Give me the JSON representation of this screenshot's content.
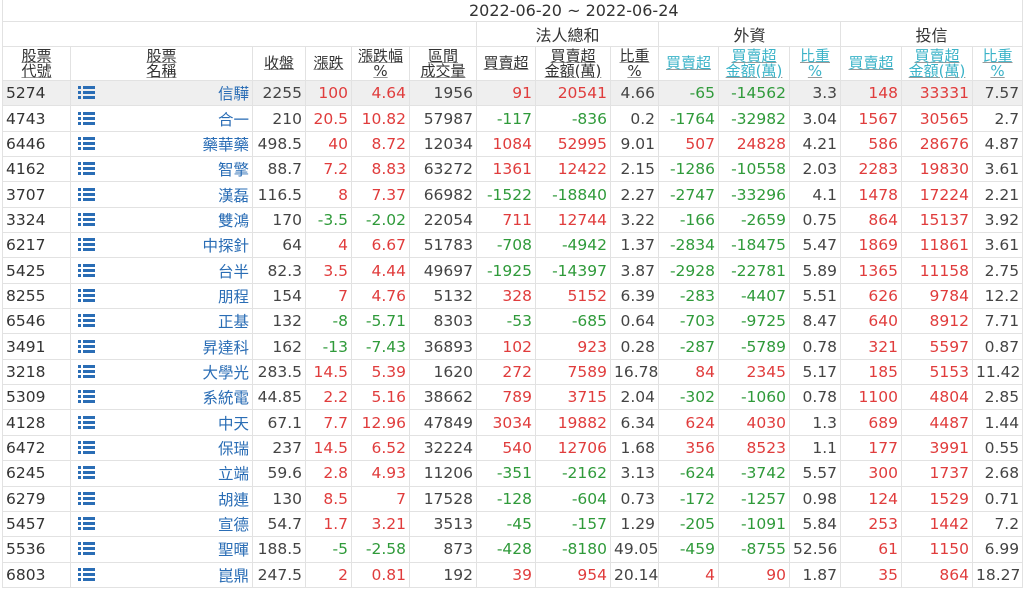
{
  "header": {
    "title": "2022-06-20 ~ 2022-06-24"
  },
  "table": {
    "groups": [
      "法人總和",
      "外資",
      "投信"
    ],
    "columns": [
      [
        "股票",
        "代號"
      ],
      [
        "股票",
        "名稱"
      ],
      [
        "收盤"
      ],
      [
        "漲跌"
      ],
      [
        "漲跌幅",
        "%"
      ],
      [
        "區間",
        "成交量"
      ],
      [
        "買賣超"
      ],
      [
        "買賣超",
        "金額(萬)"
      ],
      [
        "比重",
        "%"
      ],
      [
        "買賣超"
      ],
      [
        "買賣超",
        "金額(萬)"
      ],
      [
        "比重",
        "%"
      ],
      [
        "買賣超"
      ],
      [
        "買賣超",
        "金額(萬)"
      ],
      [
        "比重",
        "%"
      ]
    ],
    "rows": [
      [
        "5274",
        "信驊",
        2255,
        100,
        4.64,
        1956,
        91,
        20541,
        4.66,
        -65,
        -14562,
        3.3,
        148,
        33331,
        7.57
      ],
      [
        "4743",
        "合一",
        210,
        20.5,
        10.82,
        57987,
        -117,
        -836,
        0.2,
        -1764,
        -32982,
        3.04,
        1567,
        30565,
        2.7
      ],
      [
        "6446",
        "藥華藥",
        498.5,
        40,
        8.72,
        12034,
        1084,
        52995,
        9.01,
        507,
        24828,
        4.21,
        586,
        28676,
        4.87
      ],
      [
        "4162",
        "智擎",
        88.7,
        7.2,
        8.83,
        63272,
        1361,
        12422,
        2.15,
        -1286,
        -10558,
        2.03,
        2283,
        19830,
        3.61
      ],
      [
        "3707",
        "漢磊",
        116.5,
        8,
        7.37,
        66982,
        -1522,
        -18840,
        2.27,
        -2747,
        -33296,
        4.1,
        1478,
        17224,
        2.21
      ],
      [
        "3324",
        "雙鴻",
        170,
        -3.5,
        -2.02,
        22054,
        711,
        12744,
        3.22,
        -166,
        -2659,
        0.75,
        864,
        15137,
        3.92
      ],
      [
        "6217",
        "中探針",
        64,
        4,
        6.67,
        51783,
        -708,
        -4942,
        1.37,
        -2834,
        -18475,
        5.47,
        1869,
        11861,
        3.61
      ],
      [
        "5425",
        "台半",
        82.3,
        3.5,
        4.44,
        49697,
        -1925,
        -14397,
        3.87,
        -2928,
        -22781,
        5.89,
        1365,
        11158,
        2.75
      ],
      [
        "8255",
        "朋程",
        154,
        7,
        4.76,
        5132,
        328,
        5152,
        6.39,
        -283,
        -4407,
        5.51,
        626,
        9784,
        12.2
      ],
      [
        "6546",
        "正基",
        132,
        -8,
        -5.71,
        8303,
        -53,
        -685,
        0.64,
        -703,
        -9725,
        8.47,
        640,
        8912,
        7.71
      ],
      [
        "3491",
        "昇達科",
        162,
        -13,
        -7.43,
        36893,
        102,
        923,
        0.28,
        -287,
        -5789,
        0.78,
        321,
        5597,
        0.87
      ],
      [
        "3218",
        "大學光",
        283.5,
        14.5,
        5.39,
        1620,
        272,
        7589,
        16.78,
        84,
        2345,
        5.17,
        185,
        5153,
        11.42
      ],
      [
        "5309",
        "系統電",
        44.85,
        2.2,
        5.16,
        38662,
        789,
        3715,
        2.04,
        -302,
        -1060,
        0.78,
        1100,
        4804,
        2.85
      ],
      [
        "4128",
        "中天",
        67.1,
        7.7,
        12.96,
        47849,
        3034,
        19882,
        6.34,
        624,
        4030,
        1.3,
        689,
        4487,
        1.44
      ],
      [
        "6472",
        "保瑞",
        237,
        14.5,
        6.52,
        32224,
        540,
        12706,
        1.68,
        356,
        8523,
        1.1,
        177,
        3991,
        0.55
      ],
      [
        "6245",
        "立端",
        59.6,
        2.8,
        4.93,
        11206,
        -351,
        -2162,
        3.13,
        -624,
        -3742,
        5.57,
        300,
        1737,
        2.68
      ],
      [
        "6279",
        "胡連",
        130,
        8.5,
        7,
        17528,
        -128,
        -604,
        0.73,
        -172,
        -1257,
        0.98,
        124,
        1529,
        0.71
      ],
      [
        "5457",
        "宣德",
        54.7,
        1.7,
        3.21,
        3513,
        -45,
        -157,
        1.29,
        -205,
        -1091,
        5.84,
        253,
        1442,
        7.2
      ],
      [
        "5536",
        "聖暉",
        188.5,
        -5,
        -2.58,
        873,
        -428,
        -8180,
        49.05,
        -459,
        -8755,
        52.56,
        61,
        1150,
        6.99
      ],
      [
        "6803",
        "崑鼎",
        247.5,
        2,
        0.81,
        192,
        39,
        954,
        20.14,
        4,
        90,
        1.87,
        35,
        864,
        18.27
      ]
    ]
  }
}
